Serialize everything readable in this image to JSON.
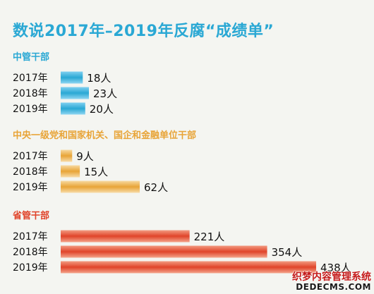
{
  "chart_data": {
    "type": "bar",
    "title": "数说2017年–2019年反腐“成绩单”",
    "groups": [
      {
        "name": "中管干部",
        "color": "#2aa8d4",
        "categories": [
          "2017年",
          "2018年",
          "2019年"
        ],
        "values": [
          18,
          23,
          20
        ],
        "labels": [
          "18人",
          "23人",
          "20人"
        ]
      },
      {
        "name": "中央一级党和国家机关、国企和金融单位干部",
        "color": "#e8a437",
        "categories": [
          "2017年",
          "2018年",
          "2019年"
        ],
        "values": [
          9,
          15,
          62
        ],
        "labels": [
          "9人",
          "15人",
          "62人"
        ]
      },
      {
        "name": "省管干部",
        "color": "#e0442a",
        "categories": [
          "2017年",
          "2018年",
          "2019年"
        ],
        "values": [
          221,
          354,
          438
        ],
        "labels": [
          "221人",
          "354人",
          "438人"
        ]
      }
    ]
  },
  "watermark": {
    "line1": "织梦内容管理系统",
    "line2": "DEDECMS.COM"
  }
}
